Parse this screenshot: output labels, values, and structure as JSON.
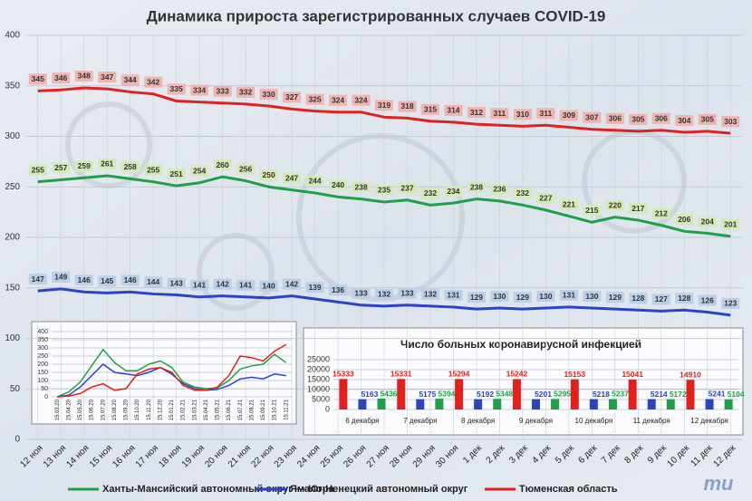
{
  "chart_data": [
    {
      "type": "line",
      "title": "Динамика прироста зарегистрированных случаев COVID-19",
      "categories": [
        "12 ноя",
        "13 ноя",
        "14 ноя",
        "15 ноя",
        "16 ноя",
        "17 ноя",
        "18 ноя",
        "19 ноя",
        "20 ноя",
        "21 ноя",
        "22 ноя",
        "23 ноя",
        "24 ноя",
        "25 ноя",
        "26 ноя",
        "27 ноя",
        "28 ноя",
        "29 ноя",
        "30 ноя",
        "1 дек",
        "2 дек",
        "3 дек",
        "4 дек",
        "5 дек",
        "6 дек",
        "7 дек",
        "8 дек",
        "9 дек",
        "10 дек",
        "11 дек",
        "12 дек"
      ],
      "series": [
        {
          "name": "Ханты-Мансийский автономный округ — Югра",
          "color": "#1fa046",
          "label_fill": "#d6e9b4",
          "values": [
            255,
            257,
            259,
            261,
            258,
            255,
            251,
            254,
            260,
            256,
            250,
            247,
            244,
            240,
            238,
            235,
            237,
            232,
            234,
            238,
            236,
            232,
            227,
            221,
            215,
            220,
            217,
            212,
            206,
            204,
            201
          ]
        },
        {
          "name": "Ямало-Ненецкий автономный округ",
          "color": "#2a44c8",
          "label_fill": "#bccfe9",
          "values": [
            147,
            149,
            146,
            145,
            146,
            144,
            143,
            141,
            142,
            141,
            140,
            142,
            139,
            136,
            133,
            132,
            133,
            132,
            131,
            129,
            130,
            129,
            130,
            131,
            130,
            129,
            128,
            127,
            128,
            126,
            123
          ]
        },
        {
          "name": "Тюменская область",
          "color": "#e0221e",
          "label_fill": "#f0b4b0",
          "values": [
            345,
            346,
            348,
            347,
            344,
            342,
            335,
            334,
            333,
            332,
            330,
            327,
            325,
            324,
            324,
            319,
            318,
            315,
            314,
            312,
            311,
            310,
            311,
            309,
            307,
            306,
            305,
            306,
            304,
            305,
            303
          ]
        }
      ],
      "ylim": [
        0,
        400
      ],
      "yticks": [
        0,
        50,
        100,
        150,
        200,
        250,
        300,
        350,
        400
      ],
      "grid": true
    },
    {
      "type": "line",
      "categories": [
        "15.03.20",
        "15.04.20",
        "15.05.20",
        "15.06.20",
        "15.07.20",
        "15.08.20",
        "15.09.20",
        "15.10.20",
        "15.11.20",
        "15.12.20",
        "15.01.21",
        "15.02.21",
        "15.03.21",
        "15.04.21",
        "15.05.21",
        "15.06.21",
        "15.07.21",
        "15.08.21",
        "15.09.21",
        "15.10.21",
        "15.11.21"
      ],
      "series": [
        {
          "color": "#1fa046",
          "values": [
            0,
            30,
            90,
            190,
            290,
            210,
            160,
            160,
            200,
            220,
            180,
            90,
            60,
            50,
            55,
            100,
            170,
            190,
            200,
            260,
            210
          ]
        },
        {
          "color": "#2a44c8",
          "values": [
            0,
            10,
            60,
            130,
            200,
            150,
            140,
            130,
            150,
            180,
            140,
            80,
            50,
            40,
            45,
            70,
            110,
            120,
            110,
            140,
            130
          ]
        },
        {
          "color": "#e0221e",
          "values": [
            0,
            5,
            20,
            60,
            80,
            40,
            50,
            140,
            170,
            180,
            150,
            70,
            40,
            40,
            60,
            130,
            250,
            240,
            220,
            280,
            320
          ]
        }
      ],
      "ylim": [
        0,
        400
      ],
      "yticks": [
        0,
        50,
        100,
        150,
        200,
        250,
        300,
        350,
        400
      ],
      "grid": true
    },
    {
      "type": "bar",
      "title": "Число больных коронавирусной инфекцией",
      "categories": [
        "6 декабря",
        "7 декабря",
        "8 декабря",
        "9 декабря",
        "10 декабря",
        "11 декабря",
        "12 декабря"
      ],
      "series": [
        {
          "color": "#e0221e",
          "values": [
            15333,
            15331,
            15294,
            15242,
            15153,
            15041,
            14910
          ]
        },
        {
          "color": "#2a44c8",
          "values": [
            5163,
            5175,
            5192,
            5201,
            5218,
            5214,
            5241
          ]
        },
        {
          "color": "#1fa046",
          "values": [
            5436,
            5394,
            5348,
            5295,
            5237,
            5172,
            5104
          ]
        }
      ],
      "ylim": [
        0,
        25000
      ],
      "yticks": [
        0,
        5000,
        10000,
        15000,
        20000,
        25000
      ],
      "grid": true
    }
  ],
  "logo": "mu"
}
